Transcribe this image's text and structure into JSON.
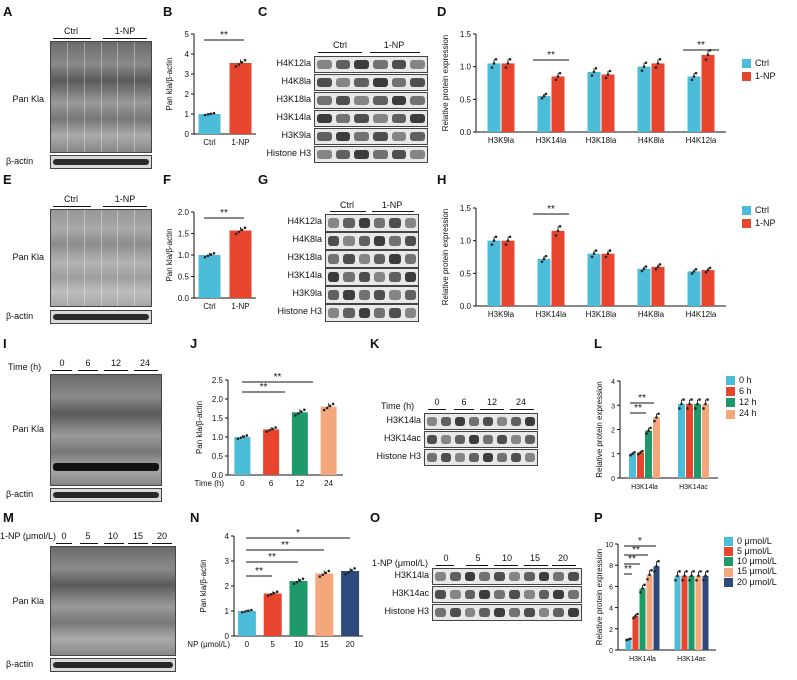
{
  "panels": {
    "A": "A",
    "B": "B",
    "C": "C",
    "D": "D",
    "E": "E",
    "F": "F",
    "G": "G",
    "H": "H",
    "I": "I",
    "J": "J",
    "K": "K",
    "L": "L",
    "M": "M",
    "N": "N",
    "O": "O",
    "P": "P"
  },
  "colors": {
    "ctrl": "#4bbdd8",
    "np": "#e8452f",
    "c0": "#4bbdd8",
    "c6": "#e8452f",
    "c12": "#1e9a6a",
    "c15": "#f5a77c",
    "c20": "#2e4a7c"
  },
  "blots": {
    "A": {
      "groups": [
        "Ctrl",
        "1-NP"
      ],
      "main": "Pan Kla",
      "loading": "β-actin"
    },
    "E": {
      "groups": [
        "Ctrl",
        "1-NP"
      ],
      "main": "Pan Kla",
      "loading": "β-actin"
    },
    "C": {
      "groups": [
        "Ctrl",
        "1-NP"
      ],
      "rows": [
        "H4K12la",
        "H4K8la",
        "H3K18la",
        "H3K14la",
        "H3K9la",
        "Histone H3"
      ]
    },
    "G": {
      "groups": [
        "Ctrl",
        "1-NP"
      ],
      "rows": [
        "H4K12la",
        "H4K8la",
        "H3K18la",
        "H3K14la",
        "H3K9la",
        "Histone H3"
      ]
    },
    "I": {
      "axis": "Time (h)",
      "ticks": [
        "0",
        "6",
        "12",
        "24"
      ],
      "main": "Pan Kla",
      "loading": "β-actin"
    },
    "K": {
      "axis": "Time (h)",
      "ticks": [
        "0",
        "6",
        "12",
        "24"
      ],
      "rows": [
        "H3K14la",
        "H3K14ac",
        "Histone H3"
      ]
    },
    "M": {
      "axis": "1-NP (μmol/L)",
      "ticks": [
        "0",
        "5",
        "10",
        "15",
        "20"
      ],
      "main": "Pan Kla",
      "loading": "β-actin"
    },
    "O": {
      "axis": "1-NP (μmol/L)",
      "ticks": [
        "0",
        "5",
        "10",
        "15",
        "20"
      ],
      "rows": [
        "H3K14la",
        "H3K14ac",
        "Histone H3"
      ]
    }
  },
  "chart_data": [
    {
      "id": "B",
      "type": "bar",
      "ylabel": "Pan kla/β-actin",
      "categories": [
        "Ctrl",
        "1-NP"
      ],
      "values": [
        1.0,
        3.55
      ],
      "ylim": [
        0,
        5
      ],
      "yticks": [
        "0",
        "1",
        "2",
        "3",
        "4",
        "5"
      ],
      "sig": [
        "**"
      ]
    },
    {
      "id": "F",
      "type": "bar",
      "ylabel": "Pan kla/β-actin",
      "categories": [
        "Ctrl",
        "1-NP"
      ],
      "values": [
        1.0,
        1.57
      ],
      "ylim": [
        0,
        2.0
      ],
      "yticks": [
        "0.0",
        "0.5",
        "1.0",
        "1.5",
        "2.0"
      ],
      "sig": [
        "**"
      ]
    },
    {
      "id": "D",
      "type": "bar",
      "ylabel": "Relative protein expression",
      "categories": [
        "H3K9la",
        "H3K14la",
        "H3K18la",
        "H4K8la",
        "H4K12la"
      ],
      "ylim": [
        0,
        1.5
      ],
      "yticks": [
        "0.0",
        "0.5",
        "1.0",
        "1.5"
      ],
      "series": [
        {
          "name": "Ctrl",
          "values": [
            1.05,
            0.55,
            0.92,
            1.0,
            0.85
          ]
        },
        {
          "name": "1-NP",
          "values": [
            1.05,
            0.85,
            0.88,
            1.05,
            1.18
          ]
        }
      ],
      "sig": [
        "**",
        "**"
      ]
    },
    {
      "id": "H",
      "type": "bar",
      "ylabel": "Relative protein expression",
      "categories": [
        "H3K9la",
        "H3K14la",
        "H3K18la",
        "H4K8la",
        "H4K12la"
      ],
      "ylim": [
        0,
        1.5
      ],
      "yticks": [
        "0.0",
        "0.5",
        "1.0",
        "1.5"
      ],
      "series": [
        {
          "name": "Ctrl",
          "values": [
            1.0,
            0.72,
            0.8,
            0.57,
            0.53
          ]
        },
        {
          "name": "1-NP",
          "values": [
            1.0,
            1.15,
            0.8,
            0.6,
            0.55
          ]
        }
      ],
      "sig": [
        "**"
      ]
    },
    {
      "id": "J",
      "type": "bar",
      "ylabel": "Pan kla/β-actin",
      "xlabel": "Time (h)",
      "categories": [
        "0",
        "6",
        "12",
        "24"
      ],
      "values": [
        1.0,
        1.2,
        1.65,
        1.8
      ],
      "ylim": [
        0,
        2.5
      ],
      "yticks": [
        "0.0",
        "0.5",
        "1.0",
        "1.5",
        "2.0",
        "2.5"
      ],
      "sig": [
        "**",
        "**"
      ]
    },
    {
      "id": "L",
      "type": "bar",
      "ylabel": "Relative protein expression",
      "categories": [
        "H3K14la",
        "H3K14ac"
      ],
      "ylim": [
        0,
        4
      ],
      "yticks": [
        "0",
        "1",
        "2",
        "3",
        "4"
      ],
      "series": [
        {
          "name": "0 h",
          "values": [
            1.0,
            3.05
          ]
        },
        {
          "name": "6 h",
          "values": [
            1.05,
            3.05
          ]
        },
        {
          "name": "12 h",
          "values": [
            1.95,
            3.05
          ]
        },
        {
          "name": "24 h",
          "values": [
            2.5,
            3.05
          ]
        }
      ],
      "sig": [
        "**",
        "**"
      ]
    },
    {
      "id": "N",
      "type": "bar",
      "ylabel": "Pan kla/β-actin",
      "xlabel": "1-NP (μmol/L)",
      "categories": [
        "0",
        "5",
        "10",
        "15",
        "20"
      ],
      "values": [
        1.0,
        1.7,
        2.2,
        2.5,
        2.6
      ],
      "ylim": [
        0,
        4
      ],
      "yticks": [
        "0",
        "1",
        "2",
        "3",
        "4"
      ],
      "sig": [
        "*",
        "**",
        "**",
        "**"
      ]
    },
    {
      "id": "P",
      "type": "bar",
      "ylabel": "Relative protein expression",
      "categories": [
        "H3K14la",
        "H3K14ac"
      ],
      "ylim": [
        0,
        10
      ],
      "yticks": [
        "0",
        "2",
        "4",
        "6",
        "8",
        "10"
      ],
      "series": [
        {
          "name": "0 μmol/L",
          "values": [
            1.0,
            7.0
          ]
        },
        {
          "name": "5 μmol/L",
          "values": [
            3.2,
            7.0
          ]
        },
        {
          "name": "10 μmol/L",
          "values": [
            5.8,
            7.0
          ]
        },
        {
          "name": "15 μmol/L",
          "values": [
            7.1,
            7.0
          ]
        },
        {
          "name": "20 μmol/L",
          "values": [
            7.9,
            7.0
          ]
        }
      ],
      "sig": [
        "*",
        "**",
        "**",
        "**"
      ]
    }
  ]
}
